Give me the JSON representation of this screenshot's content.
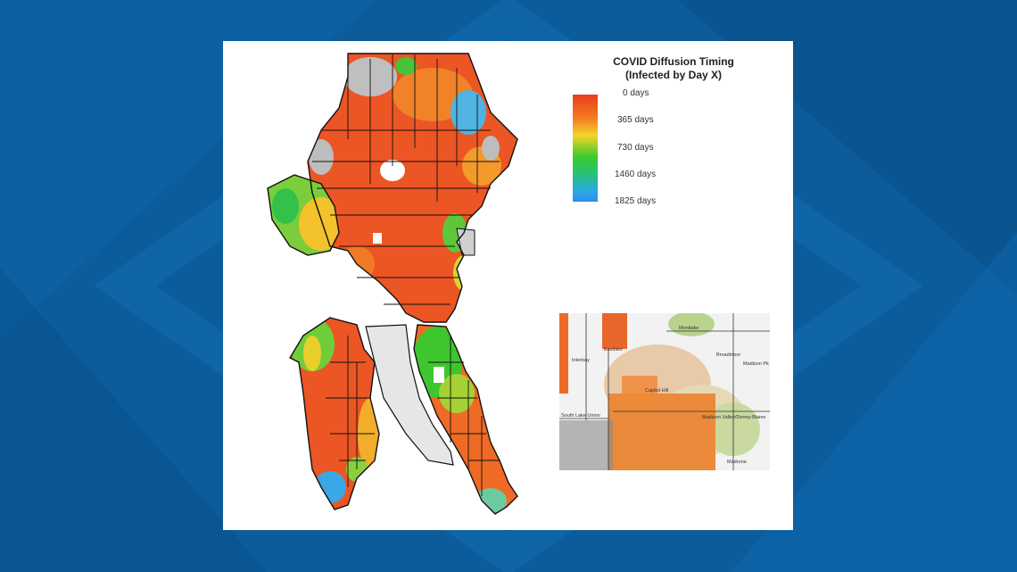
{
  "legend": {
    "title_line1": "COVID Diffusion Timing",
    "title_line2": "(Infected by Day X)",
    "ticks": [
      "0 days",
      "365 days",
      "730 days",
      "1460 days",
      "1825 days"
    ],
    "colors": [
      "#e8401c",
      "#f47a22",
      "#f4d42a",
      "#3ecb2e",
      "#2aa8e4"
    ]
  },
  "inset": {
    "labels": [
      "Eastlake",
      "Montlake",
      "Broadmoor",
      "Madison Pk",
      "Capitol Hill",
      "South Lake Union",
      "Madison Valley/Denny-Blaine",
      "Madrona",
      "Interbay"
    ]
  },
  "colors": {
    "background": "#0b5d9e",
    "panel": "#ffffff",
    "outline": "#111111"
  }
}
